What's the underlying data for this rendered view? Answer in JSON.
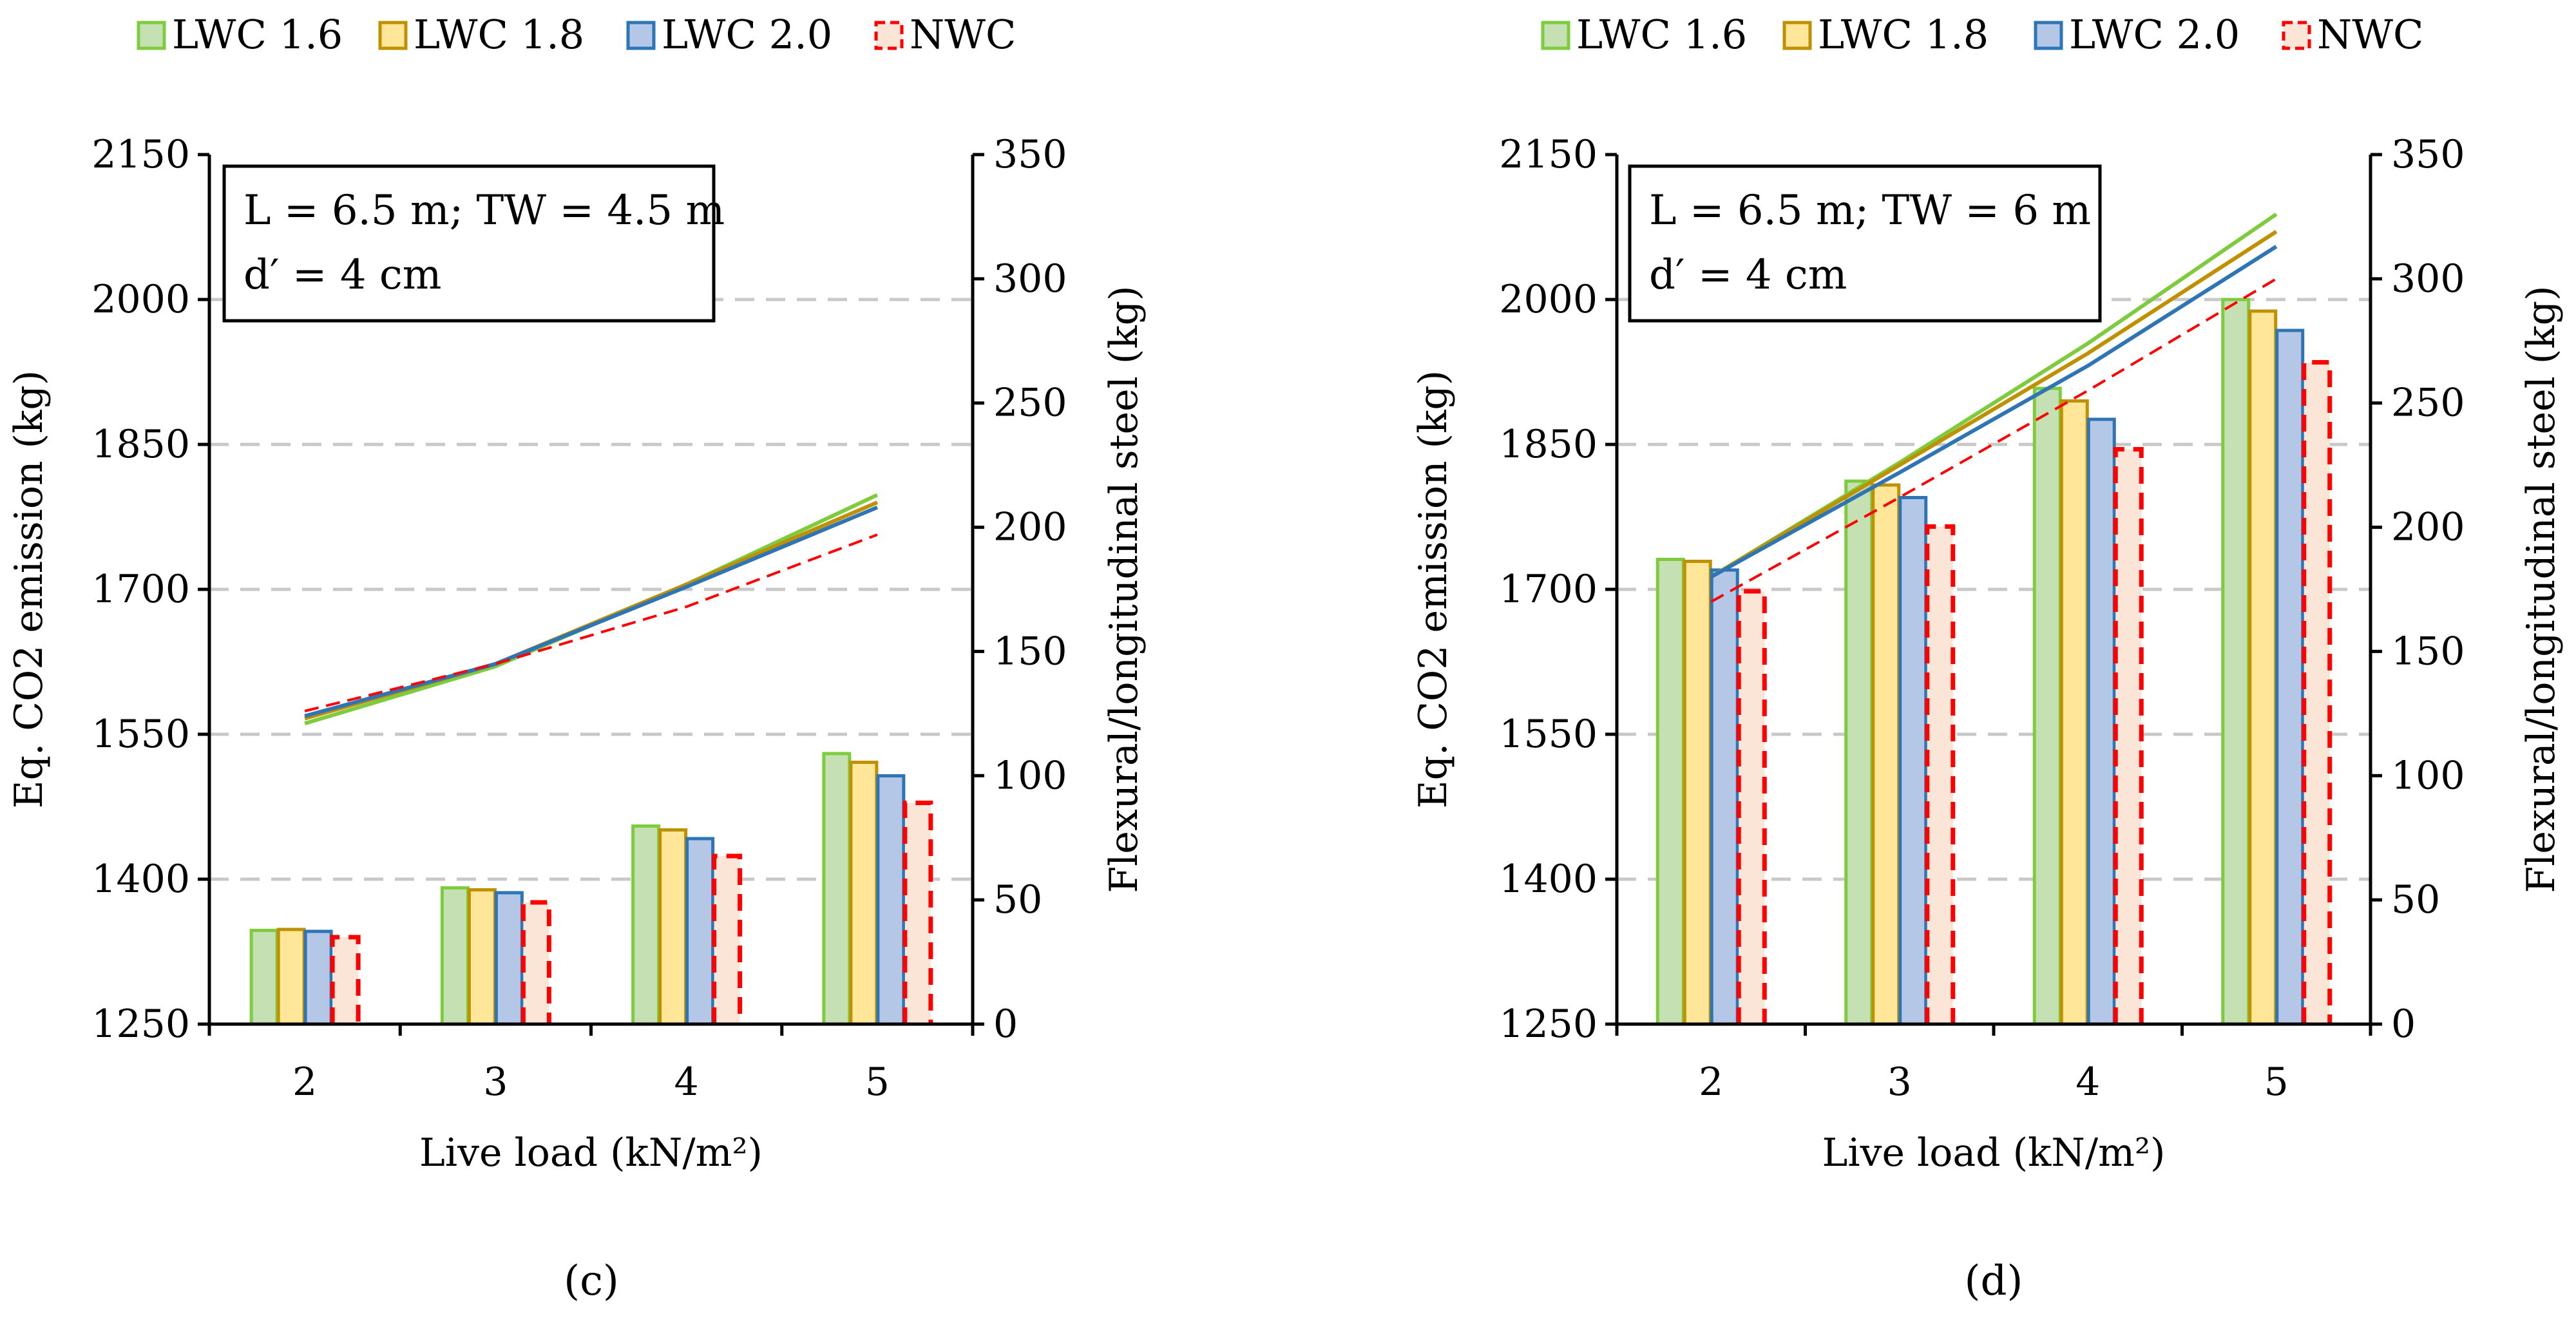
{
  "colors": {
    "LWC 1.6": {
      "stroke": "#7ecb3e",
      "fill": "#c5e0b3"
    },
    "LWC 1.8": {
      "stroke": "#bf9000",
      "fill": "#ffe699"
    },
    "LWC 2.0": {
      "stroke": "#2e75b6",
      "fill": "#b4c7e7"
    },
    "NWC": {
      "stroke": "#ff0000",
      "fill": "#fbe5d6"
    }
  },
  "chart_data": [
    {
      "type": "bar+line",
      "panel_label": "(c)",
      "legend": [
        "LWC 1.6",
        "LWC 1.8",
        "LWC 2.0",
        "NWC"
      ],
      "annotation": {
        "line1": "L = 6.5 m; TW = 4.5 m",
        "line2": "d′ = 4 cm"
      },
      "xlabel": "Live load (kN/m²)",
      "ylabel_left": "Eq. CO2 emission (kg)",
      "ylabel_right": "Flexural/longitudinal steel (kg)",
      "categories": [
        "2",
        "3",
        "4",
        "5"
      ],
      "left_axis": {
        "min": 1250,
        "max": 2150,
        "ticks": [
          "1250",
          "1400",
          "1550",
          "1700",
          "1850",
          "2000",
          "2150"
        ]
      },
      "right_axis": {
        "min": 0,
        "max": 350,
        "ticks": [
          "0",
          "50",
          "100",
          "150",
          "200",
          "250",
          "300",
          "350"
        ]
      },
      "bar_axis": "left",
      "line_axis": "right",
      "bars": [
        {
          "name": "LWC 1.6",
          "values": [
            1347,
            1391,
            1455,
            1530
          ]
        },
        {
          "name": "LWC 1.8",
          "values": [
            1348,
            1389,
            1451,
            1521
          ]
        },
        {
          "name": "LWC 2.0",
          "values": [
            1346,
            1386,
            1442,
            1507
          ]
        },
        {
          "name": "NWC",
          "values": [
            1340,
            1376,
            1424,
            1479
          ]
        }
      ],
      "lines": [
        {
          "name": "LWC 1.6",
          "values": [
            121,
            144,
            177,
            213
          ]
        },
        {
          "name": "LWC 1.8",
          "values": [
            123,
            145,
            177,
            210
          ]
        },
        {
          "name": "LWC 2.0",
          "values": [
            124,
            145,
            176,
            208
          ]
        },
        {
          "name": "NWC",
          "values": [
            126,
            145,
            168,
            197
          ]
        }
      ]
    },
    {
      "type": "bar+line",
      "panel_label": "(d)",
      "legend": [
        "LWC 1.6",
        "LWC 1.8",
        "LWC 2.0",
        "NWC"
      ],
      "annotation": {
        "line1": "L = 6.5 m; TW = 6 m",
        "line2": "d′ = 4 cm"
      },
      "xlabel": "Live load (kN/m²)",
      "ylabel_left": "Eq. CO2 emission (kg)",
      "ylabel_right": "Flexural/longitudinal steel (kg)",
      "categories": [
        "2",
        "3",
        "4",
        "5"
      ],
      "left_axis": {
        "min": 1250,
        "max": 2150,
        "ticks": [
          "1250",
          "1400",
          "1550",
          "1700",
          "1850",
          "2000",
          "2150"
        ]
      },
      "right_axis": {
        "min": 0,
        "max": 350,
        "ticks": [
          "0",
          "50",
          "100",
          "150",
          "200",
          "250",
          "300",
          "350"
        ]
      },
      "bar_axis": "left",
      "line_axis": "right",
      "bars": [
        {
          "name": "LWC 1.6",
          "values": [
            1731,
            1812,
            1908,
            2000
          ]
        },
        {
          "name": "LWC 1.8",
          "values": [
            1729,
            1808,
            1895,
            1988
          ]
        },
        {
          "name": "LWC 2.0",
          "values": [
            1720,
            1795,
            1876,
            1968
          ]
        },
        {
          "name": "NWC",
          "values": [
            1698,
            1765,
            1845,
            1935
          ]
        }
      ],
      "lines": [
        {
          "name": "LWC 1.6",
          "values": [
            180,
            226,
            274,
            326
          ]
        },
        {
          "name": "LWC 1.8",
          "values": [
            180,
            225,
            270,
            319
          ]
        },
        {
          "name": "LWC 2.0",
          "values": [
            180,
            222,
            265,
            313
          ]
        },
        {
          "name": "NWC",
          "values": [
            170,
            212,
            255,
            300
          ]
        }
      ]
    }
  ]
}
